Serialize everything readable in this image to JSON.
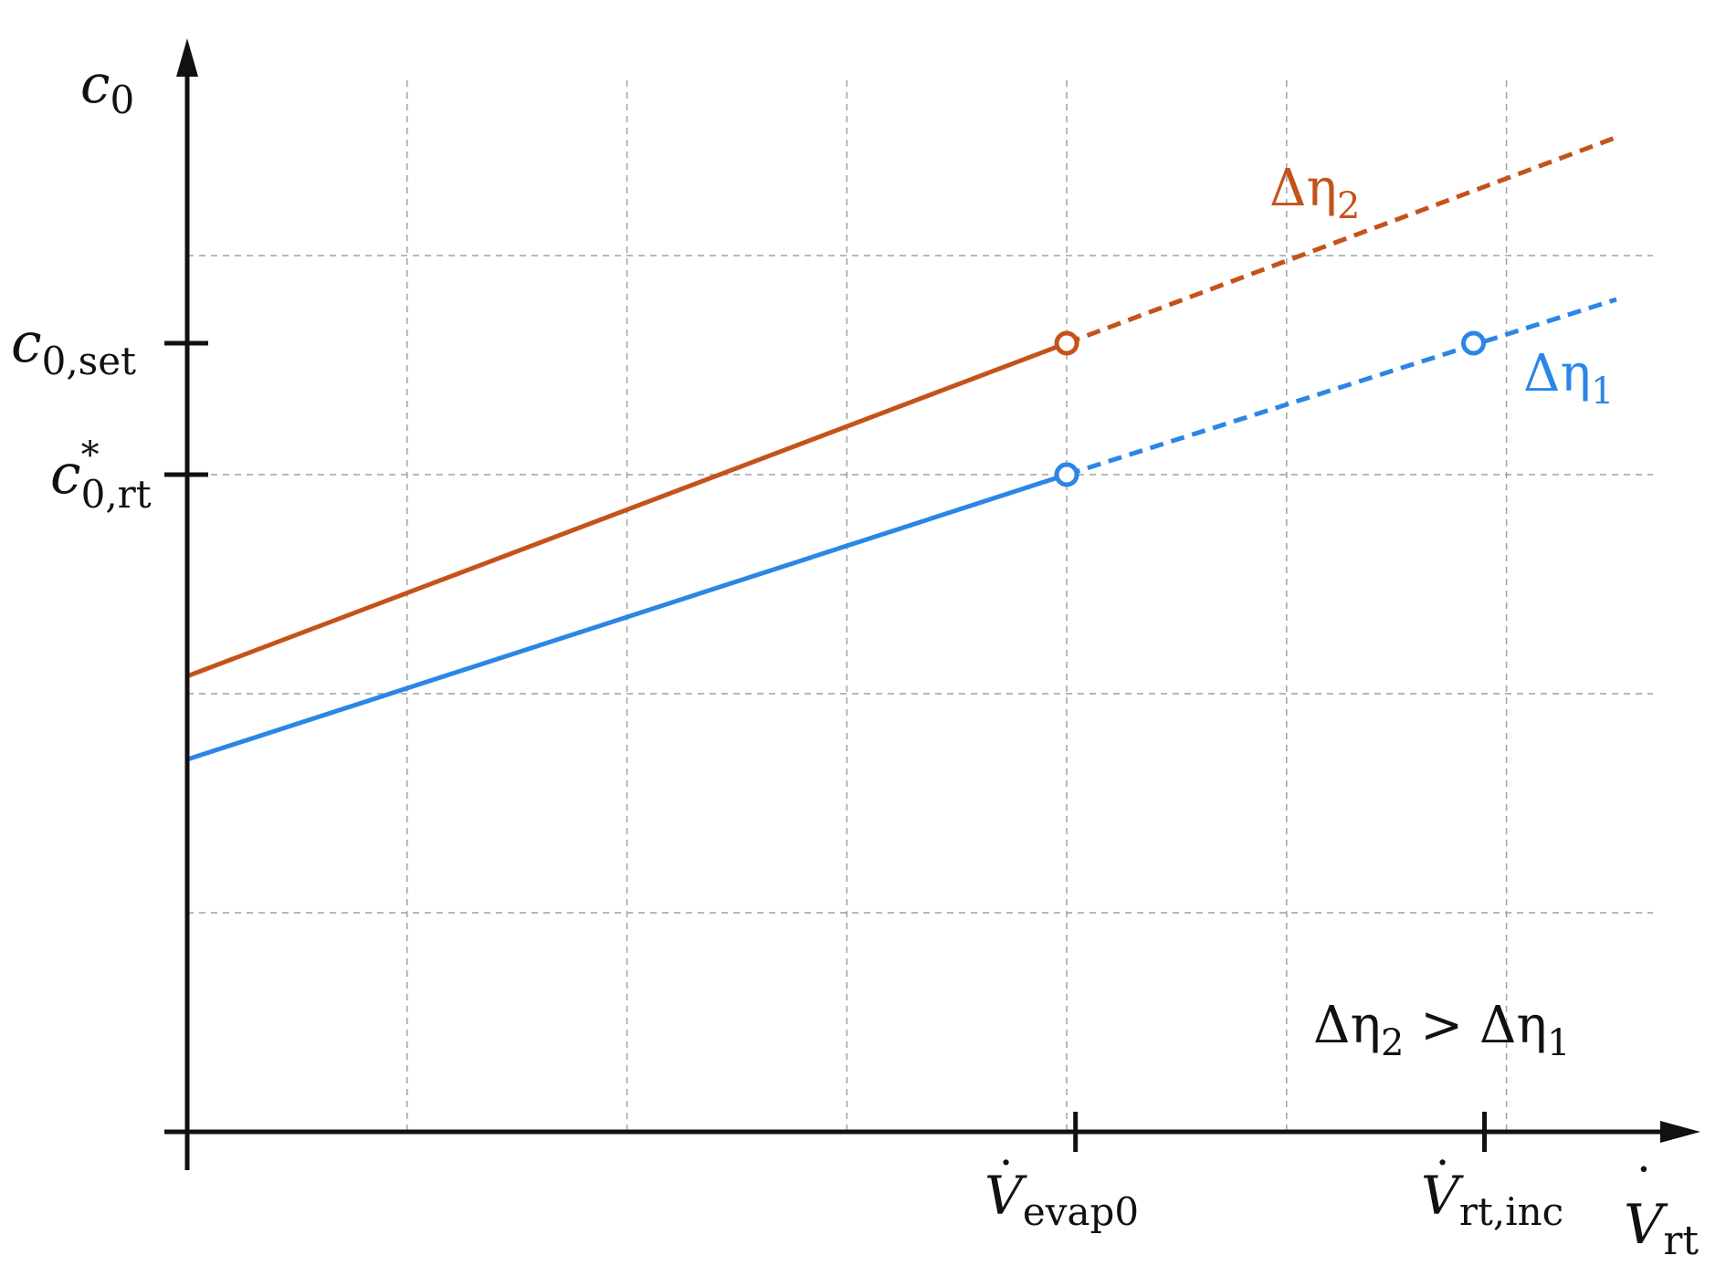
{
  "chart_data": {
    "type": "line",
    "title": "",
    "axes": {
      "x_label": {
        "main": "V",
        "sub": "rt",
        "dot": true
      },
      "y_label": {
        "main": "c",
        "sub": "0"
      },
      "xlim": [
        0,
        6.5
      ],
      "ylim": [
        0,
        5
      ],
      "grid": true,
      "grid_lines_x": [
        1,
        2,
        3,
        4,
        5,
        6
      ],
      "grid_lines_y": [
        1,
        2,
        3,
        4
      ]
    },
    "x_ticks": [
      {
        "main": "V",
        "sub": "evap0",
        "value": 4.04,
        "dot": true
      },
      {
        "main": "V",
        "sub": "rt,inc",
        "value": 5.9,
        "dot": true
      }
    ],
    "y_ticks": [
      {
        "main": "c",
        "sub": "0,set",
        "sup": "",
        "value": 3.6
      },
      {
        "main": "c",
        "sub": "0,rt",
        "sup": "*",
        "value": 3.0
      }
    ],
    "series": [
      {
        "name": "Δη2",
        "base": "Δη",
        "sub": "2",
        "color": "#c4531a",
        "solid": [
          [
            0,
            2.08
          ],
          [
            4.0,
            3.6
          ]
        ],
        "dashed": [
          [
            4.0,
            3.6
          ],
          [
            6.5,
            4.54
          ]
        ],
        "markers": [
          [
            4.0,
            3.6
          ]
        ]
      },
      {
        "name": "Δη1",
        "base": "Δη",
        "sub": "1",
        "color": "#2b86e6",
        "solid": [
          [
            0,
            1.7
          ],
          [
            4.0,
            3.0
          ]
        ],
        "dashed": [
          [
            4.0,
            3.0
          ],
          [
            6.5,
            3.8
          ]
        ],
        "markers": [
          [
            4.0,
            3.0
          ],
          [
            5.85,
            3.6
          ]
        ]
      }
    ],
    "annotation": {
      "a": "Δη",
      "a_sub": "2",
      "op": " > ",
      "b": "Δη",
      "b_sub": "1"
    }
  }
}
